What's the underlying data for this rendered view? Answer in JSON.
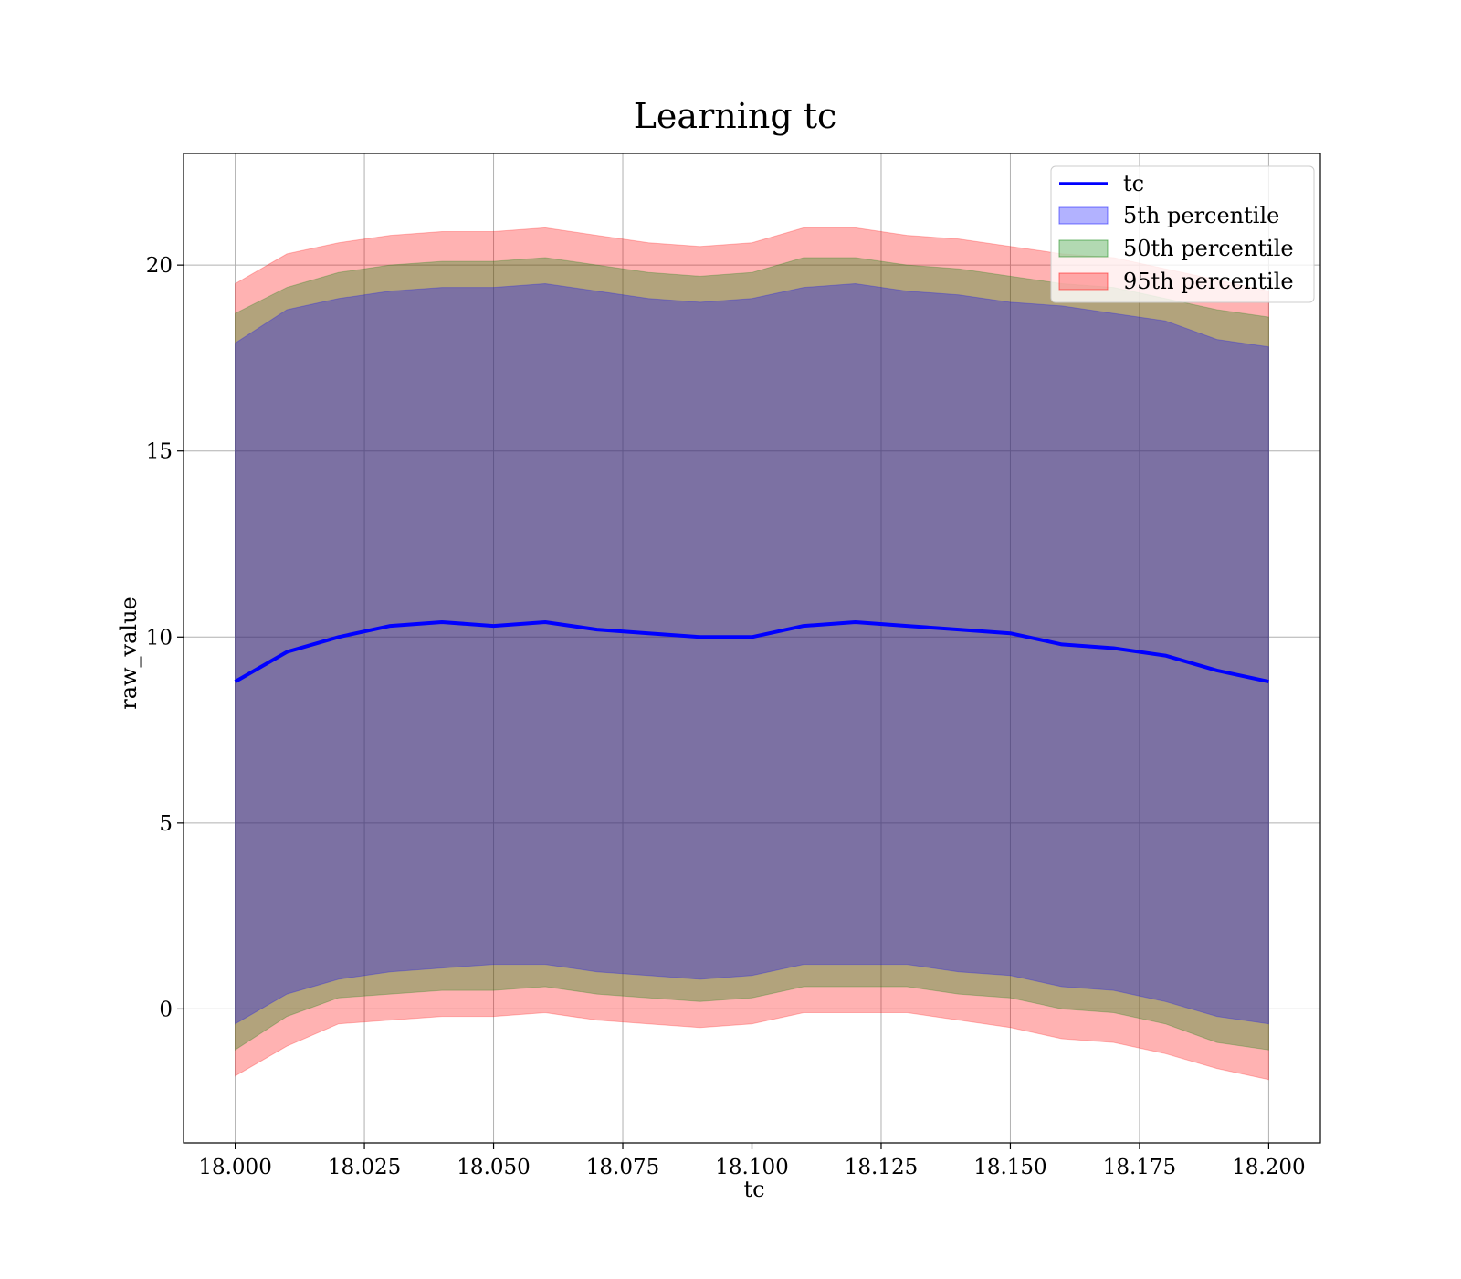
{
  "chart_data": {
    "type": "area",
    "title": "Learning tc",
    "xlabel": "tc",
    "ylabel": "raw_value",
    "xlim": [
      17.99,
      18.21
    ],
    "ylim": [
      -3.6,
      23.0
    ],
    "x_ticks": [
      "18.000",
      "18.025",
      "18.050",
      "18.075",
      "18.100",
      "18.125",
      "18.150",
      "18.175",
      "18.200"
    ],
    "x_tick_values": [
      18.0,
      18.025,
      18.05,
      18.075,
      18.1,
      18.125,
      18.15,
      18.175,
      18.2
    ],
    "y_ticks": [
      "0",
      "5",
      "10",
      "15",
      "20"
    ],
    "y_tick_values": [
      0,
      5,
      10,
      15,
      20
    ],
    "grid": true,
    "legend_position": "top-right",
    "colors": {
      "line": "#0000ff",
      "band_5": "#0000ff",
      "band_50": "#008000",
      "band_95": "#ff0000",
      "band_alpha": 0.3
    },
    "x": [
      18.0,
      18.01,
      18.02,
      18.03,
      18.04,
      18.05,
      18.06,
      18.07,
      18.08,
      18.09,
      18.1,
      18.11,
      18.12,
      18.13,
      18.14,
      18.15,
      18.16,
      18.17,
      18.18,
      18.19,
      18.2
    ],
    "series": [
      {
        "name": "tc",
        "kind": "line",
        "values": [
          8.8,
          9.6,
          10.0,
          10.3,
          10.4,
          10.3,
          10.4,
          10.2,
          10.1,
          10.0,
          10.0,
          10.3,
          10.4,
          10.3,
          10.2,
          10.1,
          9.8,
          9.7,
          9.5,
          9.1,
          8.8
        ]
      },
      {
        "name": "5th percentile",
        "kind": "band",
        "lower": [
          -0.4,
          0.4,
          0.8,
          1.0,
          1.1,
          1.2,
          1.2,
          1.0,
          0.9,
          0.8,
          0.9,
          1.2,
          1.2,
          1.2,
          1.0,
          0.9,
          0.6,
          0.5,
          0.2,
          -0.2,
          -0.4
        ],
        "upper": [
          17.9,
          18.8,
          19.1,
          19.3,
          19.4,
          19.4,
          19.5,
          19.3,
          19.1,
          19.0,
          19.1,
          19.4,
          19.5,
          19.3,
          19.2,
          19.0,
          18.9,
          18.7,
          18.5,
          18.0,
          17.8
        ]
      },
      {
        "name": "50th percentile",
        "kind": "band",
        "lower": [
          -1.1,
          -0.2,
          0.3,
          0.4,
          0.5,
          0.5,
          0.6,
          0.4,
          0.3,
          0.2,
          0.3,
          0.6,
          0.6,
          0.6,
          0.4,
          0.3,
          0.0,
          -0.1,
          -0.4,
          -0.9,
          -1.1
        ],
        "upper": [
          18.7,
          19.4,
          19.8,
          20.0,
          20.1,
          20.1,
          20.2,
          20.0,
          19.8,
          19.7,
          19.8,
          20.2,
          20.2,
          20.0,
          19.9,
          19.7,
          19.5,
          19.4,
          19.1,
          18.8,
          18.6
        ]
      },
      {
        "name": "95th percentile",
        "kind": "band",
        "lower": [
          -1.8,
          -1.0,
          -0.4,
          -0.3,
          -0.2,
          -0.2,
          -0.1,
          -0.3,
          -0.4,
          -0.5,
          -0.4,
          -0.1,
          -0.1,
          -0.1,
          -0.3,
          -0.5,
          -0.8,
          -0.9,
          -1.2,
          -1.6,
          -1.9
        ],
        "upper": [
          19.5,
          20.3,
          20.6,
          20.8,
          20.9,
          20.9,
          21.0,
          20.8,
          20.6,
          20.5,
          20.6,
          21.0,
          21.0,
          20.8,
          20.7,
          20.5,
          20.3,
          20.2,
          19.9,
          19.6,
          19.3
        ]
      }
    ]
  }
}
